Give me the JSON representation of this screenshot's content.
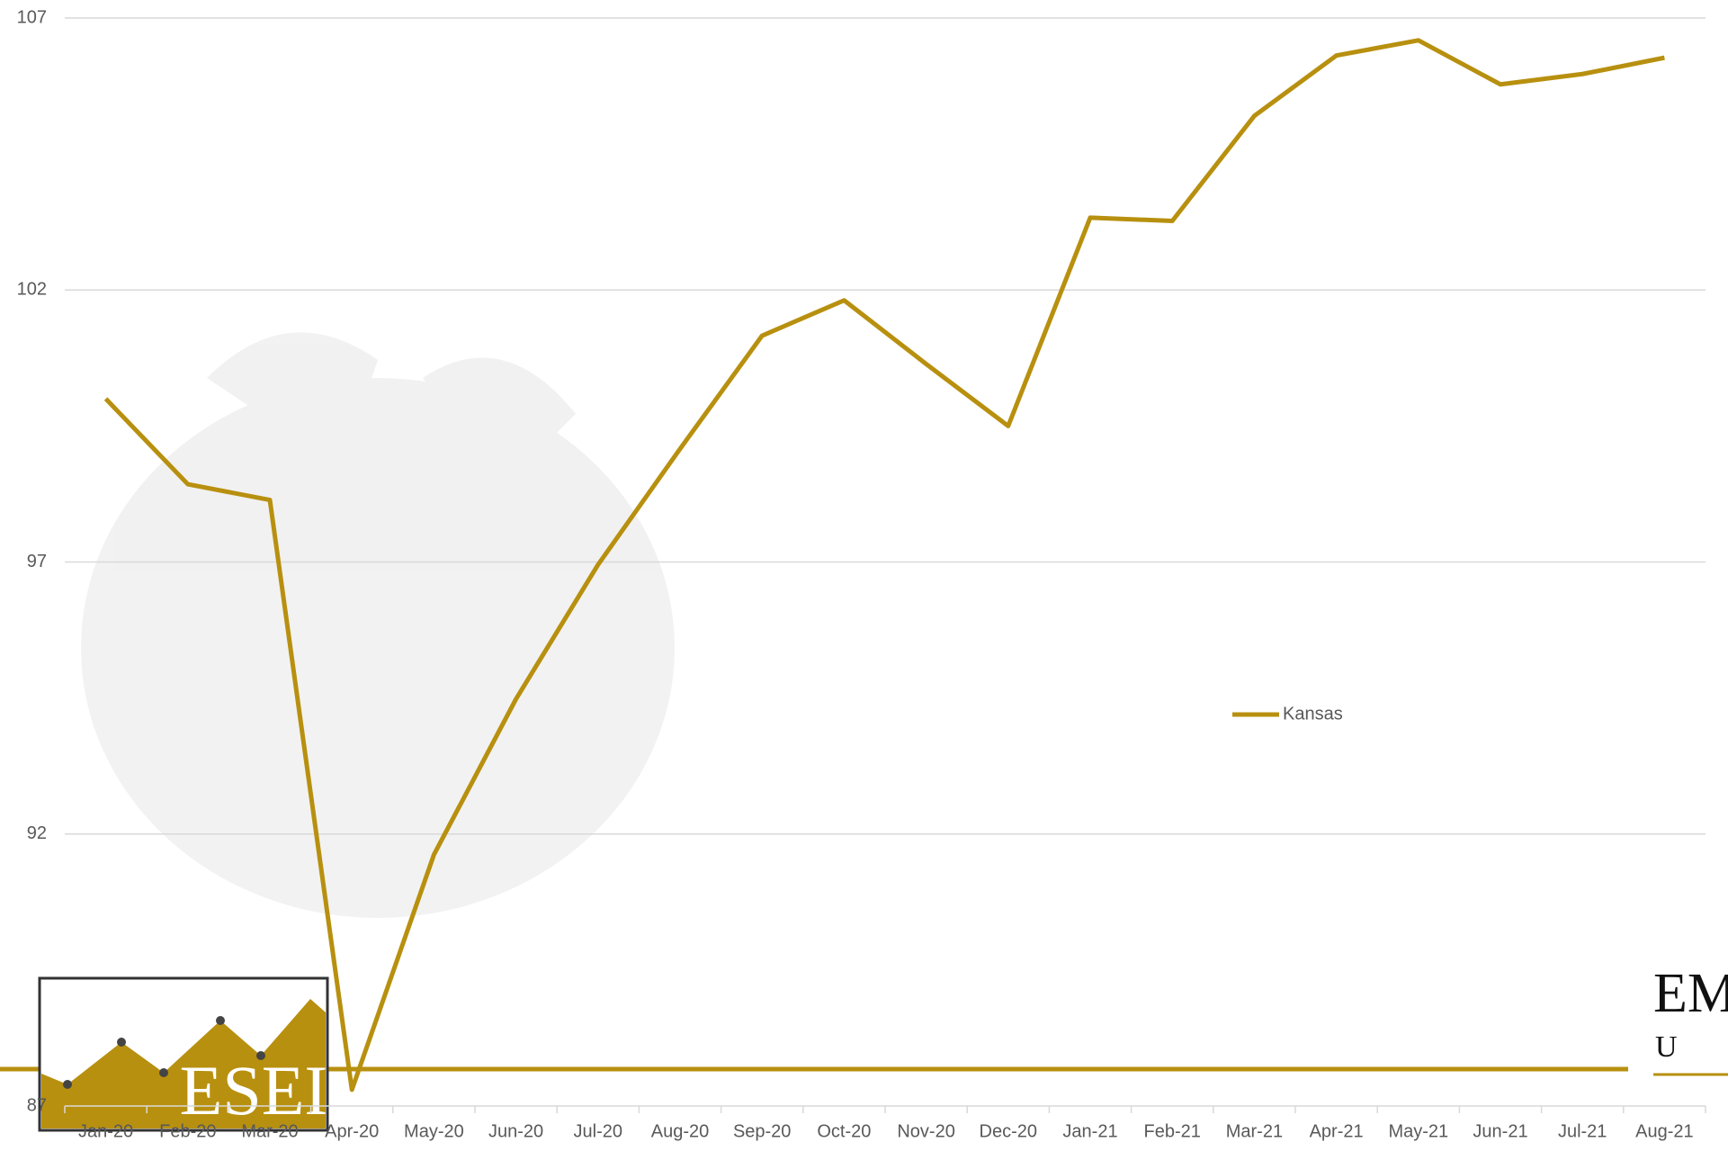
{
  "chart_data": {
    "type": "line",
    "categories": [
      "Jan-20",
      "Feb-20",
      "Mar-20",
      "Apr-20",
      "May-20",
      "Jun-20",
      "Jul-20",
      "Aug-20",
      "Sep-20",
      "Oct-20",
      "Nov-20",
      "Dec-20",
      "Jan-21",
      "Feb-21",
      "Mar-21",
      "Apr-21",
      "May-21",
      "Jun-21",
      "Jul-21",
      "Aug-21"
    ],
    "series": [
      {
        "name": "Kansas",
        "color": "#b8900f",
        "values": [
          100.0,
          98.43,
          98.14,
          87.3,
          91.62,
          94.48,
          96.95,
          99.08,
          101.16,
          101.81,
          100.64,
          99.5,
          103.33,
          103.27,
          105.2,
          106.31,
          106.59,
          105.78,
          105.97,
          106.27
        ]
      }
    ],
    "ylim": [
      87,
      107
    ],
    "yticks": [
      87,
      92,
      97,
      102,
      107
    ],
    "grid": true,
    "legend": "right"
  },
  "logos": {
    "left": "ESEI",
    "right_top": "EM",
    "right_bottom": "U N"
  }
}
